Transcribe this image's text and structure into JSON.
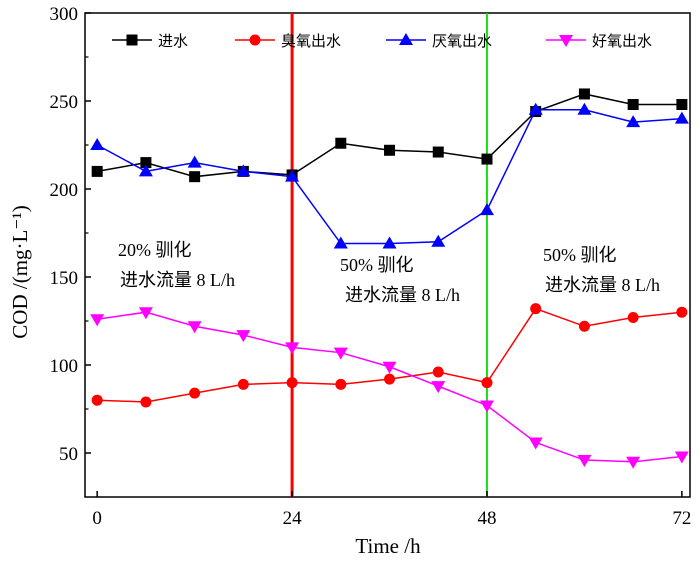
{
  "chart_data": {
    "type": "line",
    "xlabel": "Time /h",
    "ylabel": "COD /(mg·L⁻¹)",
    "xlim": [
      -1.5,
      73
    ],
    "ylim": [
      25,
      300
    ],
    "xticks": [
      0,
      24,
      48,
      72
    ],
    "yticks": [
      50,
      100,
      150,
      200,
      250,
      300
    ],
    "x": [
      0,
      6,
      12,
      18,
      24,
      30,
      36,
      42,
      48,
      54,
      60,
      66,
      72
    ],
    "series": [
      {
        "name": "进水",
        "color": "#000000",
        "marker": "square",
        "values": [
          210,
          215,
          207,
          210,
          208,
          226,
          222,
          221,
          217,
          244,
          254,
          248,
          248
        ]
      },
      {
        "name": "臭氧出水",
        "color": "#ff0000",
        "marker": "circle",
        "values": [
          80,
          79,
          84,
          89,
          90,
          89,
          92,
          96,
          90,
          132,
          122,
          127,
          130
        ]
      },
      {
        "name": "厌氧出水",
        "color": "#0000ff",
        "marker": "triangle-up",
        "values": [
          225,
          210,
          215,
          210,
          207,
          169,
          169,
          170,
          188,
          245,
          245,
          238,
          240
        ]
      },
      {
        "name": "好氧出水",
        "color": "#ff00ff",
        "marker": "triangle-down",
        "values": [
          126,
          130,
          122,
          117,
          110,
          107,
          99,
          88,
          77,
          56,
          46,
          45,
          48
        ]
      }
    ],
    "vlines": [
      {
        "x": 24,
        "color": "#ff0000"
      },
      {
        "x": 48,
        "color": "#00dd00"
      }
    ],
    "annotations": [
      {
        "line1": "20% 驯化",
        "line2": "进水流量 8 L/h"
      },
      {
        "line1": "50% 驯化",
        "line2": "进水流量 8 L/h"
      },
      {
        "line1": "50% 驯化",
        "line2": "进水流量 8 L/h"
      }
    ]
  }
}
